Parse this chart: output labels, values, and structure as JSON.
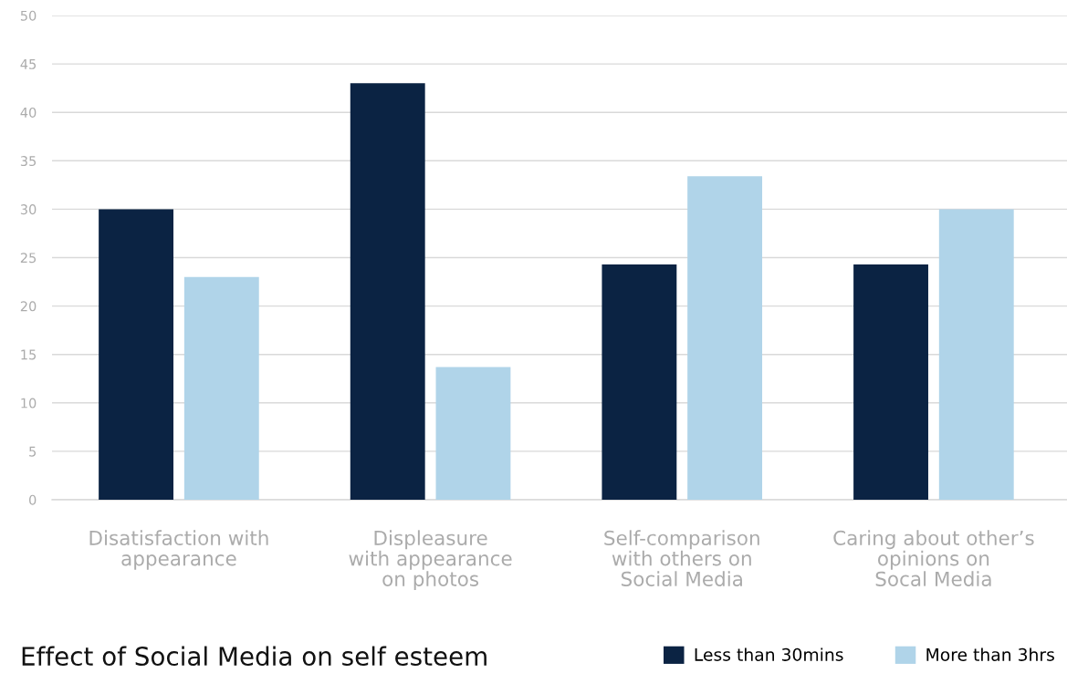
{
  "chart_data": {
    "type": "bar",
    "title": "Effect of Social Media on self esteem",
    "categories": [
      "Disatisfaction with\nappearance",
      "Displeasure\nwith appearance\non photos",
      "Self-comparison\nwith others on\nSocial Media",
      "Caring about other’s\nopinions on\nSocal Media"
    ],
    "series": [
      {
        "name": "Less than 30mins",
        "color": "#0b2343",
        "values": [
          30,
          43,
          24.3,
          24.3
        ]
      },
      {
        "name": "More than 3hrs",
        "color": "#b0d4e9",
        "values": [
          23,
          13.7,
          33.4,
          30
        ]
      }
    ],
    "ylim": [
      0,
      50
    ],
    "yticks": [
      0,
      5,
      10,
      15,
      20,
      25,
      30,
      35,
      40,
      45,
      50
    ],
    "grid": "y",
    "legend": "bottom right"
  }
}
